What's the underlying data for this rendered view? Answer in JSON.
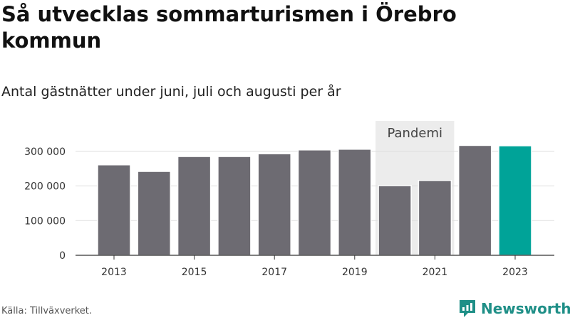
{
  "chart_data": {
    "type": "bar",
    "title": "Så utvecklas sommarturismen i Örebro kommun",
    "subtitle": "Antal gästnätter under juni, juli och augusti per år",
    "categories": [
      "2013",
      "2014",
      "2015",
      "2016",
      "2017",
      "2018",
      "2019",
      "2020",
      "2021",
      "2022",
      "2023"
    ],
    "values": [
      261000,
      242000,
      285000,
      285000,
      293000,
      304000,
      306000,
      201000,
      216000,
      317000,
      316000
    ],
    "highlight_category": "2023",
    "x_tick_labels": [
      "2013",
      "2015",
      "2017",
      "2019",
      "2021",
      "2023"
    ],
    "y_ticks": [
      0,
      100000,
      200000,
      300000
    ],
    "y_tick_labels": [
      "0",
      "100 000",
      "200 000",
      "300 000"
    ],
    "ylim": [
      0,
      320000
    ],
    "grid": "horizontal",
    "annotation": {
      "label": "Pandemi",
      "from": "2020",
      "to": "2021"
    },
    "colors": {
      "bar": "#6d6b72",
      "highlight": "#00a398",
      "shade": "#ececec",
      "grid": "#dddddd",
      "axis": "#333333"
    }
  },
  "source": "Källa: Tillväxverket.",
  "brand": {
    "name": "Newsworthy",
    "icon": "newsworthy-logo-icon",
    "color": "#1f8f87"
  }
}
